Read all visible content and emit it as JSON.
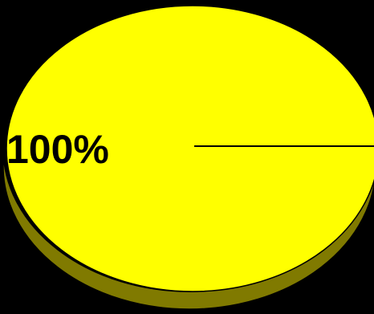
{
  "chart_data": {
    "type": "pie",
    "style": "3d",
    "slices": [
      {
        "value": 100,
        "label": "100%",
        "color": "#ffff00",
        "side_color": "#807a00"
      }
    ],
    "outline_color": "#000000",
    "background": "#000000"
  }
}
